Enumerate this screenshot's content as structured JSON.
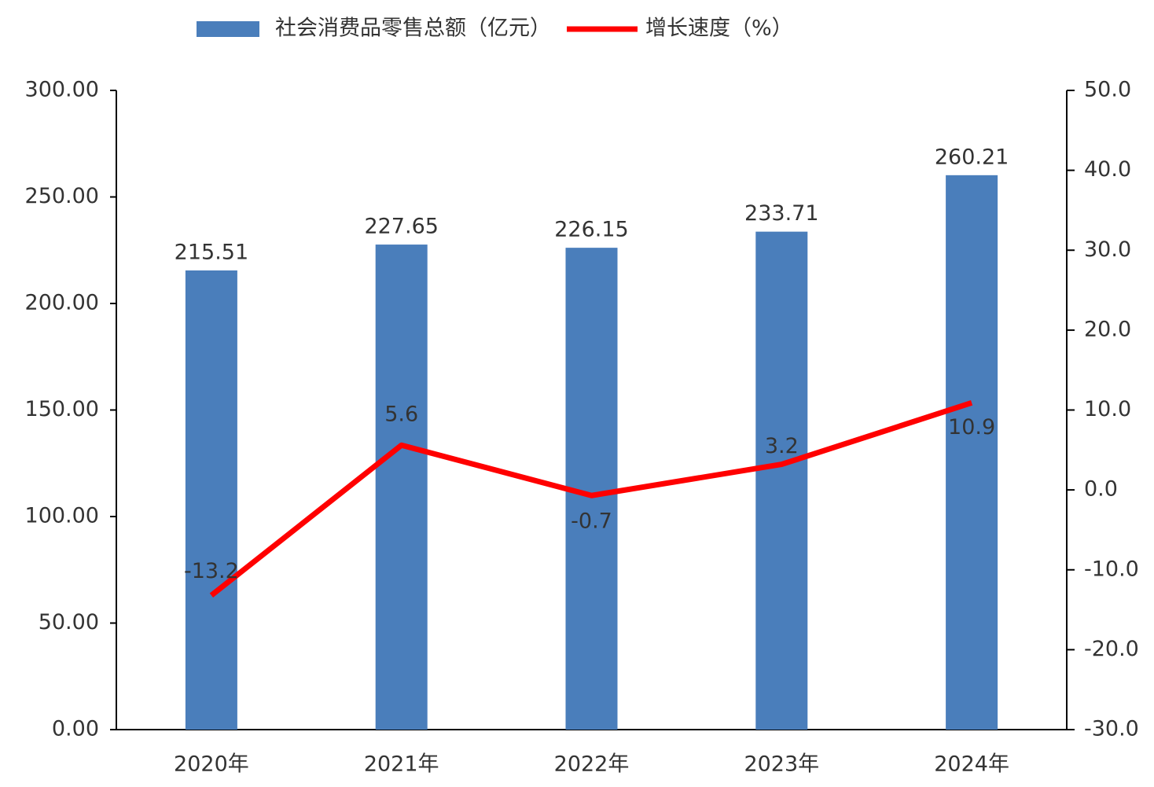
{
  "chart_data": {
    "type": "bar_line",
    "categories": [
      "2020年",
      "2021年",
      "2022年",
      "2023年",
      "2024年"
    ],
    "series": [
      {
        "name": "社会消费品零售总额（亿元）",
        "color": "#4a7ebb",
        "type": "bar",
        "axis": "y",
        "values": [
          215.51,
          227.65,
          226.15,
          233.71,
          260.21
        ]
      },
      {
        "name": "增长速度（%）",
        "color": "#ff0000",
        "type": "line",
        "axis": "y2",
        "values": [
          -13.2,
          5.6,
          -0.7,
          3.2,
          10.9
        ]
      }
    ],
    "ylim": [
      0,
      300
    ],
    "yticks": [
      {
        "value": 0,
        "label": "0.00"
      },
      {
        "value": 50,
        "label": "50.00"
      },
      {
        "value": 100,
        "label": "100.00"
      },
      {
        "value": 150,
        "label": "150.00"
      },
      {
        "value": 200,
        "label": "200.00"
      },
      {
        "value": 250,
        "label": "250.00"
      },
      {
        "value": 300,
        "label": "300.00"
      }
    ],
    "y2lim": [
      -30,
      50
    ],
    "y2ticks": [
      {
        "value": -30,
        "label": "-30.0"
      },
      {
        "value": -20,
        "label": "-20.0"
      },
      {
        "value": -10,
        "label": "-10.0"
      },
      {
        "value": 0,
        "label": "0.0"
      },
      {
        "value": 10,
        "label": "10.0"
      },
      {
        "value": 20,
        "label": "20.0"
      },
      {
        "value": 30,
        "label": "30.0"
      },
      {
        "value": 40,
        "label": "40.0"
      },
      {
        "value": 50,
        "label": "50.0"
      }
    ],
    "legend": "top"
  }
}
